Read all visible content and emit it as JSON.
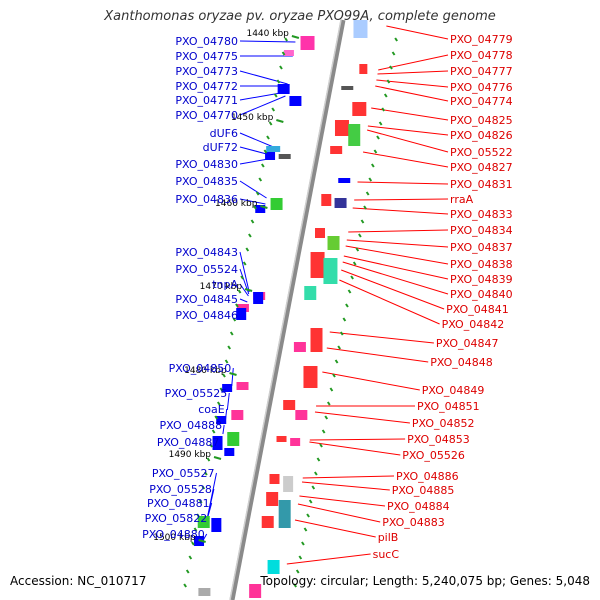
{
  "title": "Xanthomonas oryzae pv. oryzae PXO99A, complete genome",
  "accession": "Accession: NC_010717",
  "topology": "Topology: circular; Length: 5,240,075 bp; Genes: 5,048",
  "colors": {
    "backbone": "#8a8a8a",
    "left_label": "#0000cc",
    "right_label": "#dd0000",
    "leader_left": "#0000ff",
    "leader_right": "#ff0000",
    "tick": "#229922",
    "tick_label": "#000000"
  },
  "scale_marks": [
    "1440 kbp",
    "1450 kbp",
    "1460 kbp",
    "1470 kbp",
    "1480 kbp",
    "1490 kbp",
    "1500 kbp"
  ],
  "left_genes": [
    "PXO_04780",
    "PXO_04775",
    "PXO_04773",
    "PXO_04772",
    "PXO_04771",
    "PXO_04770",
    "dUF6",
    "dUF72",
    "PXO_04830",
    "PXO_04835",
    "PXO_04836",
    "PXO_04843",
    "PXO_05524",
    "tnpA",
    "PXO_04845",
    "PXO_04846",
    "PXO_04850",
    "PXO_05525",
    "coaE",
    "PXO_04888",
    "PXO_04887",
    "PXO_05527",
    "PXO_05528",
    "PXO_04881",
    "PXO_05822",
    "PXO_04880"
  ],
  "right_genes": [
    "PXO_04779",
    "PXO_04778",
    "PXO_04777",
    "PXO_04776",
    "PXO_04774",
    "PXO_04825",
    "PXO_04826",
    "PXO_05522",
    "PXO_04827",
    "PXO_04831",
    "rraA",
    "PXO_04833",
    "PXO_04834",
    "PXO_04837",
    "PXO_04838",
    "PXO_04839",
    "PXO_04840",
    "PXO_04841",
    "PXO_04842",
    "PXO_04847",
    "PXO_04848",
    "PXO_04849",
    "PXO_04851",
    "PXO_04852",
    "PXO_04853",
    "PXO_05526",
    "PXO_04886",
    "PXO_04885",
    "PXO_04884",
    "PXO_04883",
    "pilB",
    "sucC"
  ]
}
